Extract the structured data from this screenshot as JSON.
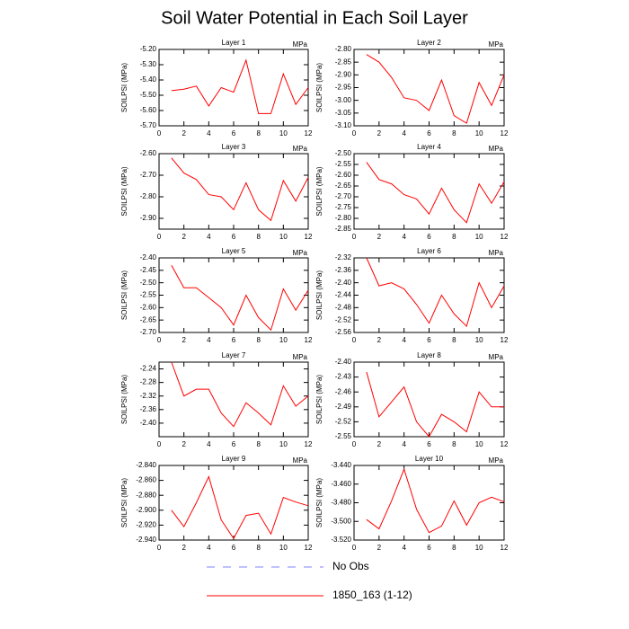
{
  "title": "Soil Water Potential in Each Soil Layer",
  "legend": [
    {
      "name": "No Obs",
      "color": "#8080ff",
      "dash": true
    },
    {
      "name": "1850_163 (1-12)",
      "color": "#ff0000",
      "dash": false
    }
  ],
  "chart_data": [
    {
      "type": "line",
      "title": "Layer 1",
      "units": "MPa",
      "y_label": "SOILPSI  (MPa)",
      "x": [
        1,
        2,
        3,
        4,
        5,
        6,
        7,
        8,
        9,
        10,
        11,
        12
      ],
      "xlim": [
        0,
        12
      ],
      "xticks": [
        0,
        2,
        4,
        6,
        8,
        10,
        12
      ],
      "ylim": [
        -5.7,
        -5.2
      ],
      "yticks": [
        {
          "value": -5.2,
          "label": "-5.20"
        },
        {
          "value": -5.3,
          "label": "-5.30"
        },
        {
          "value": -5.4,
          "label": "-5.40"
        },
        {
          "value": -5.5,
          "label": "-5.50"
        },
        {
          "value": -5.6,
          "label": "-5.60"
        },
        {
          "value": -5.7,
          "label": "-5.70"
        }
      ],
      "series": [
        {
          "color": "#ff0000",
          "values": [
            -5.47,
            -5.46,
            -5.44,
            -5.57,
            -5.45,
            -5.48,
            -5.27,
            -5.62,
            -5.62,
            -5.36,
            -5.56,
            -5.45
          ]
        }
      ]
    },
    {
      "type": "line",
      "title": "Layer 2",
      "units": "MPa",
      "y_label": "SOILPSI  (MPa)",
      "x": [
        1,
        2,
        3,
        4,
        5,
        6,
        7,
        8,
        9,
        10,
        11,
        12
      ],
      "xlim": [
        0,
        12
      ],
      "xticks": [
        0,
        2,
        4,
        6,
        8,
        10,
        12
      ],
      "ylim": [
        -3.1,
        -2.8
      ],
      "yticks": [
        {
          "value": -2.8,
          "label": "-2.80"
        },
        -2.85,
        {
          "value": -2.9,
          "label": "-2.90"
        },
        -2.95,
        {
          "value": -3.0,
          "label": "-3.00"
        },
        -3.05,
        {
          "value": -3.1,
          "label": "-3.10"
        }
      ],
      "series": [
        {
          "color": "#ff0000",
          "values": [
            -2.82,
            -2.85,
            -2.91,
            -2.99,
            -3.0,
            -3.04,
            -2.92,
            -3.06,
            -3.09,
            -2.93,
            -3.02,
            -2.9
          ]
        }
      ]
    },
    {
      "type": "line",
      "title": "Layer 3",
      "units": "MPa",
      "y_label": "SOILPSI  (MPa)",
      "x": [
        1,
        2,
        3,
        4,
        5,
        6,
        7,
        8,
        9,
        10,
        11,
        12
      ],
      "xlim": [
        0,
        12
      ],
      "xticks": [
        0,
        2,
        4,
        6,
        8,
        10,
        12
      ],
      "ylim": [
        -2.95,
        -2.6
      ],
      "yticks": [
        {
          "value": -2.6,
          "label": "-2.60"
        },
        {
          "value": -2.7,
          "label": "-2.70"
        },
        {
          "value": -2.8,
          "label": "-2.80"
        },
        {
          "value": -2.9,
          "label": "-2.90"
        }
      ],
      "series": [
        {
          "color": "#ff0000",
          "values": [
            -2.62,
            -2.69,
            -2.72,
            -2.79,
            -2.8,
            -2.86,
            -2.735,
            -2.86,
            -2.91,
            -2.725,
            -2.82,
            -2.71
          ]
        }
      ]
    },
    {
      "type": "line",
      "title": "Layer 4",
      "units": "MPa",
      "y_label": "SOILPSI  (MPa)",
      "x": [
        1,
        2,
        3,
        4,
        5,
        6,
        7,
        8,
        9,
        10,
        11,
        12
      ],
      "xlim": [
        0,
        12
      ],
      "xticks": [
        0,
        2,
        4,
        6,
        8,
        10,
        12
      ],
      "ylim": [
        -2.85,
        -2.5
      ],
      "yticks": [
        {
          "value": -2.5,
          "label": "-2.50"
        },
        -2.55,
        {
          "value": -2.6,
          "label": "-2.60"
        },
        -2.65,
        {
          "value": -2.7,
          "label": "-2.70"
        },
        -2.75,
        {
          "value": -2.8,
          "label": "-2.80"
        },
        -2.85
      ],
      "series": [
        {
          "color": "#ff0000",
          "values": [
            -2.54,
            -2.62,
            -2.64,
            -2.69,
            -2.71,
            -2.78,
            -2.66,
            -2.76,
            -2.82,
            -2.64,
            -2.73,
            -2.63
          ]
        }
      ]
    },
    {
      "type": "line",
      "title": "Layer 5",
      "units": "MPa",
      "y_label": "SOILPSI  (MPa)",
      "x": [
        1,
        2,
        3,
        4,
        5,
        6,
        7,
        8,
        9,
        10,
        11,
        12
      ],
      "xlim": [
        0,
        12
      ],
      "xticks": [
        0,
        2,
        4,
        6,
        8,
        10,
        12
      ],
      "ylim": [
        -2.7,
        -2.4
      ],
      "yticks": [
        {
          "value": -2.4,
          "label": "-2.40"
        },
        -2.45,
        {
          "value": -2.5,
          "label": "-2.50"
        },
        -2.55,
        {
          "value": -2.6,
          "label": "-2.60"
        },
        -2.65,
        {
          "value": -2.7,
          "label": "-2.70"
        }
      ],
      "series": [
        {
          "color": "#ff0000",
          "values": [
            -2.43,
            -2.52,
            -2.52,
            -2.56,
            -2.6,
            -2.67,
            -2.55,
            -2.64,
            -2.69,
            -2.525,
            -2.61,
            -2.53
          ]
        }
      ]
    },
    {
      "type": "line",
      "title": "Layer 6",
      "units": "MPa",
      "y_label": "SOILPSI  (MPa)",
      "x": [
        1,
        2,
        3,
        4,
        5,
        6,
        7,
        8,
        9,
        10,
        11,
        12
      ],
      "xlim": [
        0,
        12
      ],
      "xticks": [
        0,
        2,
        4,
        6,
        8,
        10,
        12
      ],
      "ylim": [
        -2.56,
        -2.32
      ],
      "yticks": [
        -2.32,
        -2.36,
        {
          "value": -2.4,
          "label": "-2.40"
        },
        -2.44,
        -2.48,
        -2.52,
        -2.56
      ],
      "series": [
        {
          "color": "#ff0000",
          "values": [
            -2.32,
            -2.41,
            -2.4,
            -2.42,
            -2.47,
            -2.53,
            -2.44,
            -2.5,
            -2.54,
            -2.4,
            -2.48,
            -2.41
          ]
        }
      ]
    },
    {
      "type": "line",
      "title": "Layer 7",
      "units": "MPa",
      "y_label": "SOILPSI  (MPa)",
      "x": [
        1,
        2,
        3,
        4,
        5,
        6,
        7,
        8,
        9,
        10,
        11,
        12
      ],
      "xlim": [
        0,
        12
      ],
      "xticks": [
        0,
        2,
        4,
        6,
        8,
        10,
        12
      ],
      "ylim": [
        -2.44,
        -2.22
      ],
      "yticks": [
        -2.24,
        -2.28,
        -2.32,
        -2.36,
        {
          "value": -2.4,
          "label": "-2.40"
        }
      ],
      "series": [
        {
          "color": "#ff0000",
          "values": [
            -2.22,
            -2.32,
            -2.3,
            -2.3,
            -2.37,
            -2.41,
            -2.34,
            -2.37,
            -2.405,
            -2.29,
            -2.35,
            -2.32
          ]
        }
      ]
    },
    {
      "type": "line",
      "title": "Layer 8",
      "units": "MPa",
      "y_label": "SOILPSI  (MPa)",
      "x": [
        1,
        2,
        3,
        4,
        5,
        6,
        7,
        8,
        9,
        10,
        11,
        12
      ],
      "xlim": [
        0,
        12
      ],
      "xticks": [
        0,
        2,
        4,
        6,
        8,
        10,
        12
      ],
      "ylim": [
        -2.55,
        -2.4
      ],
      "yticks": [
        {
          "value": -2.4,
          "label": "-2.40"
        },
        -2.43,
        -2.46,
        -2.49,
        -2.52,
        -2.55
      ],
      "series": [
        {
          "color": "#ff0000",
          "values": [
            -2.42,
            -2.51,
            -2.48,
            -2.45,
            -2.52,
            -2.55,
            -2.505,
            -2.52,
            -2.54,
            -2.46,
            -2.49,
            -2.49
          ]
        }
      ]
    },
    {
      "type": "line",
      "title": "Layer 9",
      "units": "MPa",
      "y_label": "SOILPSI  (MPa)",
      "x": [
        1,
        2,
        3,
        4,
        5,
        6,
        7,
        8,
        9,
        10,
        11,
        12
      ],
      "xlim": [
        0,
        12
      ],
      "xticks": [
        0,
        2,
        4,
        6,
        8,
        10,
        12
      ],
      "ylim": [
        -2.94,
        -2.84
      ],
      "yticks": [
        {
          "value": -2.84,
          "label": "-2.840"
        },
        {
          "value": -2.86,
          "label": "-2.860"
        },
        {
          "value": -2.88,
          "label": "-2.880"
        },
        {
          "value": -2.9,
          "label": "-2.900"
        },
        {
          "value": -2.92,
          "label": "-2.920"
        },
        {
          "value": -2.94,
          "label": "-2.940"
        }
      ],
      "series": [
        {
          "color": "#ff0000",
          "values": [
            -2.9,
            -2.922,
            -2.89,
            -2.855,
            -2.913,
            -2.938,
            -2.907,
            -2.904,
            -2.932,
            -2.883,
            -2.889,
            -2.894
          ]
        }
      ]
    },
    {
      "type": "line",
      "title": "Layer 10",
      "units": "MPa",
      "y_label": "SOILPSI  (MPa)",
      "x": [
        1,
        2,
        3,
        4,
        5,
        6,
        7,
        8,
        9,
        10,
        11,
        12
      ],
      "xlim": [
        0,
        12
      ],
      "xticks": [
        0,
        2,
        4,
        6,
        8,
        10,
        12
      ],
      "ylim": [
        -3.52,
        -3.44
      ],
      "yticks": [
        {
          "value": -3.44,
          "label": "-3.440"
        },
        {
          "value": -3.46,
          "label": "-3.460"
        },
        {
          "value": -3.48,
          "label": "-3.480"
        },
        {
          "value": -3.5,
          "label": "-3.500"
        },
        {
          "value": -3.52,
          "label": "-3.520"
        }
      ],
      "series": [
        {
          "color": "#ff0000",
          "values": [
            -3.498,
            -3.508,
            -3.478,
            -3.444,
            -3.487,
            -3.512,
            -3.505,
            -3.478,
            -3.504,
            -3.48,
            -3.474,
            -3.479
          ]
        }
      ]
    }
  ]
}
